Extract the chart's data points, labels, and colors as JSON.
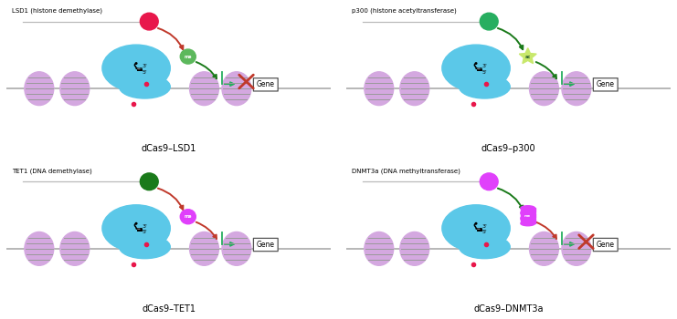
{
  "panels": [
    {
      "id": "LSD1",
      "title": "dCas9–LSD1",
      "label": "LSD1 (histone demethylase)",
      "enzyme_color": "#e8174b",
      "marker_color": "#5cb85c",
      "marker_type": "circle",
      "marker_label": "me",
      "enzyme_arrow_color": "#c0392b",
      "marker_arrow_color": "#1a7a1a",
      "gene_arrow_color": "#27ae60",
      "has_x": true
    },
    {
      "id": "p300",
      "title": "dCas9–p300",
      "label": "p300 (histone acetyltransferase)",
      "enzyme_color": "#27ae60",
      "marker_color": "#c8e86c",
      "marker_type": "star",
      "marker_label": "ac",
      "enzyme_arrow_color": "#1a7a1a",
      "marker_arrow_color": "#1a7a1a",
      "gene_arrow_color": "#27ae60",
      "has_x": false
    },
    {
      "id": "TET1",
      "title": "dCas9–TET1",
      "label": "TET1 (DNA demethylase)",
      "enzyme_color": "#1a7a1a",
      "marker_color": "#e040fb",
      "marker_type": "circle",
      "marker_label": "me",
      "enzyme_arrow_color": "#c0392b",
      "marker_arrow_color": "#c0392b",
      "gene_arrow_color": "#27ae60",
      "has_x": false
    },
    {
      "id": "DNMT3a",
      "title": "dCas9–DNMT3a",
      "label": "DNMT3a (DNA methyltransferase)",
      "enzyme_color": "#e040fb",
      "marker_color": "#e040fb",
      "marker_type": "cylinder",
      "marker_label": "me",
      "enzyme_arrow_color": "#1a7a1a",
      "marker_arrow_color": "#c0392b",
      "gene_arrow_color": "#27ae60",
      "has_x": true
    }
  ],
  "background_color": "#ffffff",
  "cas9_color": "#5bc8e8",
  "histone_color": "#d4a8e0",
  "histone_stripe": "#999999",
  "dna_color": "#aaaaaa",
  "red_dot_color": "#e8174b"
}
